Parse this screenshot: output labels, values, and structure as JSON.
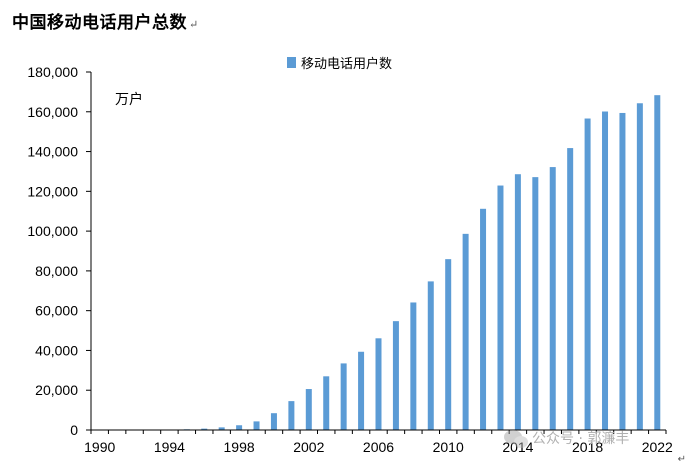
{
  "title": "中国移动电话用户总数",
  "title_mark": "↵",
  "watermark": "公众号 · 郭濂丰",
  "corner_mark": "↵",
  "chart_data": {
    "type": "bar",
    "legend": "移动电话用户数",
    "legend_position": "top-center",
    "unit_label": "万户",
    "ylim": [
      0,
      180000
    ],
    "y_ticks": [
      0,
      20000,
      40000,
      60000,
      80000,
      100000,
      120000,
      140000,
      160000,
      180000
    ],
    "y_tick_labels": [
      "0",
      "20,000",
      "40,000",
      "60,000",
      "80,000",
      "100,000",
      "120,000",
      "140,000",
      "160,000",
      "180,000"
    ],
    "x_tick_labels": [
      "1990",
      "1994",
      "1998",
      "2002",
      "2006",
      "2010",
      "2014",
      "2018",
      "2022"
    ],
    "grid": false,
    "bar_color": "#5b9bd5",
    "categories": [
      "1990",
      "1991",
      "1992",
      "1993",
      "1994",
      "1995",
      "1996",
      "1997",
      "1998",
      "1999",
      "2000",
      "2001",
      "2002",
      "2003",
      "2004",
      "2005",
      "2006",
      "2007",
      "2008",
      "2009",
      "2010",
      "2011",
      "2012",
      "2013",
      "2014",
      "2015",
      "2016",
      "2017",
      "2018",
      "2019",
      "2020",
      "2021",
      "2022"
    ],
    "values": [
      2,
      5,
      18,
      64,
      157,
      363,
      685,
      1323,
      2386,
      4330,
      8453,
      14522,
      20600,
      26995,
      33482,
      39340,
      46105,
      54728,
      64123,
      74721,
      85900,
      98625,
      111216,
      122911,
      128609,
      127140,
      132193,
      141749,
      156610,
      160134,
      159407,
      164283,
      168344
    ]
  }
}
